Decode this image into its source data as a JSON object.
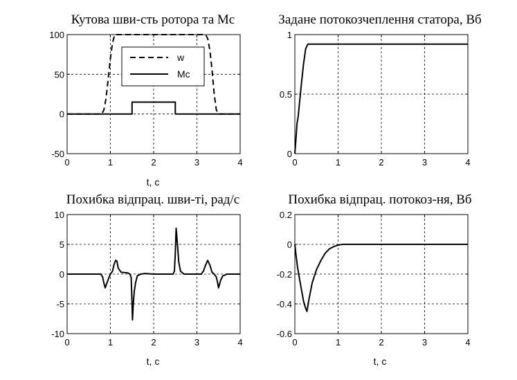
{
  "chart_data": [
    {
      "type": "line",
      "title": "Кутова шви-сть ротора та Мс",
      "xlabel": "t, c",
      "ylabel": "",
      "xlim": [
        0,
        4
      ],
      "ylim": [
        -50,
        100
      ],
      "xticks": [
        "0",
        "1",
        "2",
        "3",
        "4"
      ],
      "yticks": [
        "-50",
        "0",
        "50",
        "100"
      ],
      "grid": true,
      "legend": {
        "position": "top-center",
        "entries": [
          "w",
          "Mc"
        ]
      },
      "series": [
        {
          "name": "w",
          "style": "dashed",
          "x": [
            0,
            0.8,
            0.85,
            0.9,
            0.95,
            1.0,
            1.05,
            1.1,
            3.2,
            3.25,
            3.3,
            3.35,
            3.4,
            3.45,
            3.5,
            4
          ],
          "y": [
            0,
            0,
            5,
            20,
            45,
            70,
            90,
            100,
            100,
            95,
            80,
            55,
            25,
            5,
            0,
            0
          ]
        },
        {
          "name": "Mc",
          "style": "solid",
          "x": [
            0,
            1.5,
            1.5,
            2.5,
            2.5,
            4
          ],
          "y": [
            0,
            0,
            15,
            15,
            0,
            0
          ]
        }
      ]
    },
    {
      "type": "line",
      "title": "Задане потокозчеплення статора, Вб",
      "xlabel": "",
      "ylabel": "",
      "xlim": [
        0,
        4
      ],
      "ylim": [
        0,
        1
      ],
      "xticks": [
        "0",
        "1",
        "2",
        "3",
        "4"
      ],
      "yticks": [
        "0",
        "0.5",
        "1"
      ],
      "grid": true,
      "series": [
        {
          "style": "solid",
          "x": [
            0,
            0.02,
            0.05,
            0.08,
            0.1,
            0.15,
            0.2,
            0.25,
            0.3,
            4
          ],
          "y": [
            0,
            0.1,
            0.25,
            0.32,
            0.4,
            0.58,
            0.75,
            0.88,
            0.92,
            0.92
          ]
        }
      ]
    },
    {
      "type": "line",
      "title": "Похибка відпрац. шви-ті, рад/с",
      "xlabel": "t, c",
      "ylabel": "",
      "xlim": [
        0,
        4
      ],
      "ylim": [
        -10,
        10
      ],
      "xticks": [
        "0",
        "1",
        "2",
        "3",
        "4"
      ],
      "yticks": [
        "-10",
        "-5",
        "0",
        "5",
        "10"
      ],
      "grid": true,
      "series": [
        {
          "style": "solid",
          "x": [
            0,
            0.78,
            0.82,
            0.85,
            0.88,
            0.92,
            0.97,
            1.0,
            1.05,
            1.08,
            1.12,
            1.15,
            1.18,
            1.25,
            1.4,
            1.45,
            1.48,
            1.5,
            1.51,
            1.53,
            1.55,
            1.58,
            1.62,
            1.7,
            1.8,
            2.0,
            2.3,
            2.45,
            2.48,
            2.5,
            2.52,
            2.55,
            2.58,
            2.62,
            2.7,
            2.85,
            3.0,
            3.1,
            3.15,
            3.2,
            3.25,
            3.3,
            3.35,
            3.4,
            3.45,
            3.48,
            3.5,
            3.55,
            3.6,
            3.7,
            4
          ],
          "y": [
            0,
            0,
            -0.5,
            -1.5,
            -2.3,
            -1.5,
            -0.5,
            0,
            0.5,
            1.5,
            2.3,
            2.2,
            1.0,
            0.3,
            0.2,
            0,
            -0.5,
            -5,
            -7.7,
            -5,
            -3,
            -1.5,
            -0.3,
            0,
            0.1,
            0,
            0,
            0,
            0.5,
            3.5,
            7.7,
            5,
            2,
            0.5,
            0,
            0,
            0,
            0,
            0.5,
            1.5,
            2.3,
            1.5,
            0.3,
            0,
            -0.5,
            -1.5,
            -2.3,
            -1.0,
            -0.3,
            0,
            0
          ]
        }
      ]
    },
    {
      "type": "line",
      "title": "Похибка відпрац. потокоз-ня, Вб",
      "xlabel": "t, c",
      "ylabel": "",
      "xlim": [
        0,
        4
      ],
      "ylim": [
        -0.6,
        0.2
      ],
      "xticks": [
        "0",
        "1",
        "2",
        "3",
        "4"
      ],
      "yticks": [
        "-0.6",
        "-0.4",
        "-0.2",
        "0",
        "0.2"
      ],
      "grid": true,
      "series": [
        {
          "style": "solid",
          "x": [
            0,
            0.03,
            0.06,
            0.1,
            0.15,
            0.2,
            0.25,
            0.28,
            0.32,
            0.4,
            0.5,
            0.6,
            0.7,
            0.8,
            0.9,
            1.0,
            1.1,
            1.2,
            4
          ],
          "y": [
            0,
            -0.08,
            -0.15,
            -0.22,
            -0.3,
            -0.38,
            -0.43,
            -0.45,
            -0.38,
            -0.26,
            -0.17,
            -0.11,
            -0.06,
            -0.03,
            -0.015,
            -0.005,
            0,
            0,
            0
          ]
        }
      ]
    }
  ]
}
